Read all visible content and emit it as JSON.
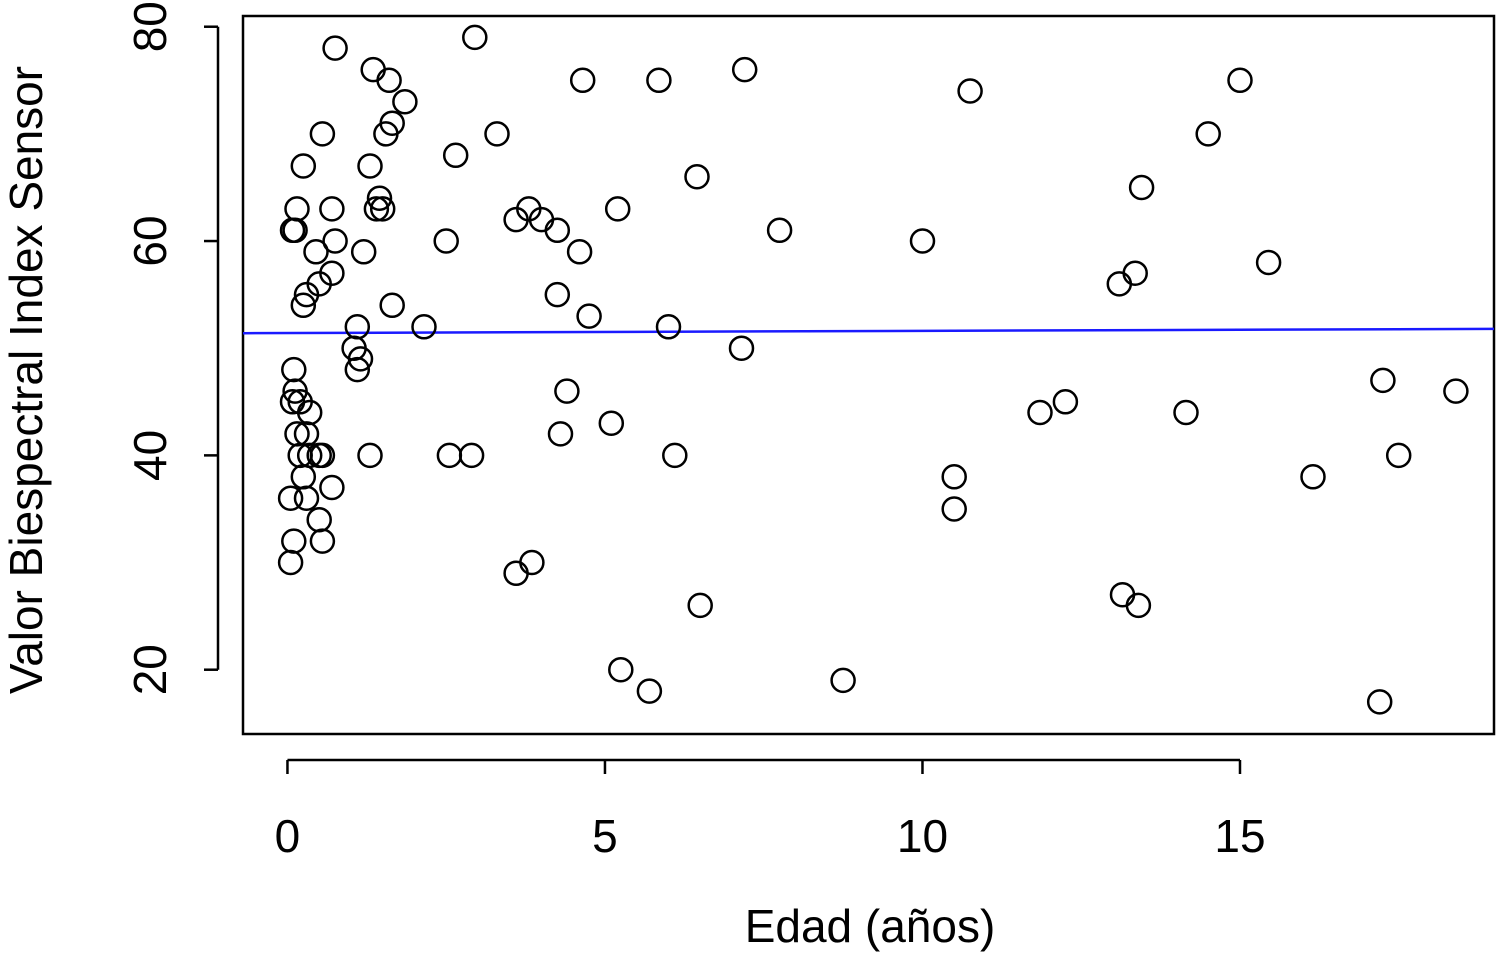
{
  "chart_data": {
    "type": "scatter",
    "title": "",
    "xlabel": "Edad (años)",
    "ylabel": "Valor Biespectral Index Sensor",
    "xlim": [
      -0.7,
      19.0
    ],
    "ylim": [
      14,
      81
    ],
    "xticks": [
      0,
      5,
      10,
      15
    ],
    "yticks": [
      20,
      40,
      60,
      80
    ],
    "grid": false,
    "legend": "none",
    "marker": "open-circle",
    "colors": {
      "points": "#000000",
      "trend": "#1a1aff"
    },
    "trend_line": {
      "x": [
        -0.7,
        19.0
      ],
      "y": [
        51.4,
        51.8
      ]
    },
    "points": [
      [
        0.75,
        78
      ],
      [
        2.95,
        79
      ],
      [
        1.35,
        76
      ],
      [
        1.6,
        75
      ],
      [
        1.85,
        73
      ],
      [
        1.65,
        71
      ],
      [
        1.55,
        70
      ],
      [
        0.55,
        70
      ],
      [
        0.25,
        67
      ],
      [
        1.3,
        67
      ],
      [
        1.45,
        64
      ],
      [
        1.4,
        63
      ],
      [
        1.5,
        63
      ],
      [
        0.15,
        63
      ],
      [
        0.7,
        63
      ],
      [
        0.08,
        61
      ],
      [
        0.12,
        61
      ],
      [
        0.75,
        60
      ],
      [
        0.45,
        59
      ],
      [
        1.2,
        59
      ],
      [
        0.7,
        57
      ],
      [
        0.5,
        56
      ],
      [
        0.3,
        55
      ],
      [
        0.25,
        54
      ],
      [
        1.65,
        54
      ],
      [
        1.1,
        52
      ],
      [
        2.15,
        52
      ],
      [
        1.05,
        50
      ],
      [
        1.15,
        49
      ],
      [
        1.1,
        48
      ],
      [
        0.1,
        48
      ],
      [
        0.12,
        46
      ],
      [
        0.08,
        45
      ],
      [
        0.2,
        45
      ],
      [
        0.35,
        44
      ],
      [
        0.15,
        42
      ],
      [
        0.3,
        42
      ],
      [
        0.2,
        40
      ],
      [
        0.35,
        40
      ],
      [
        0.5,
        40
      ],
      [
        0.55,
        40
      ],
      [
        1.3,
        40
      ],
      [
        0.25,
        38
      ],
      [
        0.7,
        37
      ],
      [
        0.05,
        36
      ],
      [
        0.3,
        36
      ],
      [
        0.5,
        34
      ],
      [
        0.55,
        32
      ],
      [
        0.1,
        32
      ],
      [
        0.05,
        30
      ],
      [
        2.65,
        68
      ],
      [
        3.3,
        70
      ],
      [
        2.5,
        60
      ],
      [
        4.65,
        75
      ],
      [
        5.85,
        75
      ],
      [
        7.2,
        76
      ],
      [
        6.45,
        66
      ],
      [
        5.2,
        63
      ],
      [
        3.8,
        63
      ],
      [
        3.6,
        62
      ],
      [
        4.0,
        62
      ],
      [
        4.25,
        61
      ],
      [
        7.75,
        61
      ],
      [
        4.6,
        59
      ],
      [
        4.25,
        55
      ],
      [
        4.75,
        53
      ],
      [
        6.0,
        52
      ],
      [
        7.15,
        50
      ],
      [
        4.4,
        46
      ],
      [
        4.3,
        42
      ],
      [
        5.1,
        43
      ],
      [
        6.1,
        40
      ],
      [
        2.55,
        40
      ],
      [
        2.9,
        40
      ],
      [
        3.6,
        29
      ],
      [
        3.85,
        30
      ],
      [
        6.5,
        26
      ],
      [
        5.25,
        20
      ],
      [
        5.7,
        18
      ],
      [
        8.75,
        19
      ],
      [
        10.75,
        74
      ],
      [
        10.0,
        60
      ],
      [
        10.5,
        38
      ],
      [
        10.5,
        35
      ],
      [
        11.85,
        44
      ],
      [
        12.25,
        45
      ],
      [
        13.1,
        56
      ],
      [
        13.35,
        57
      ],
      [
        13.45,
        65
      ],
      [
        14.5,
        70
      ],
      [
        15.0,
        75
      ],
      [
        15.45,
        58
      ],
      [
        14.15,
        44
      ],
      [
        13.15,
        27
      ],
      [
        13.4,
        26
      ],
      [
        16.15,
        38
      ],
      [
        17.25,
        47
      ],
      [
        17.5,
        40
      ],
      [
        18.4,
        46
      ],
      [
        17.2,
        17
      ]
    ]
  }
}
